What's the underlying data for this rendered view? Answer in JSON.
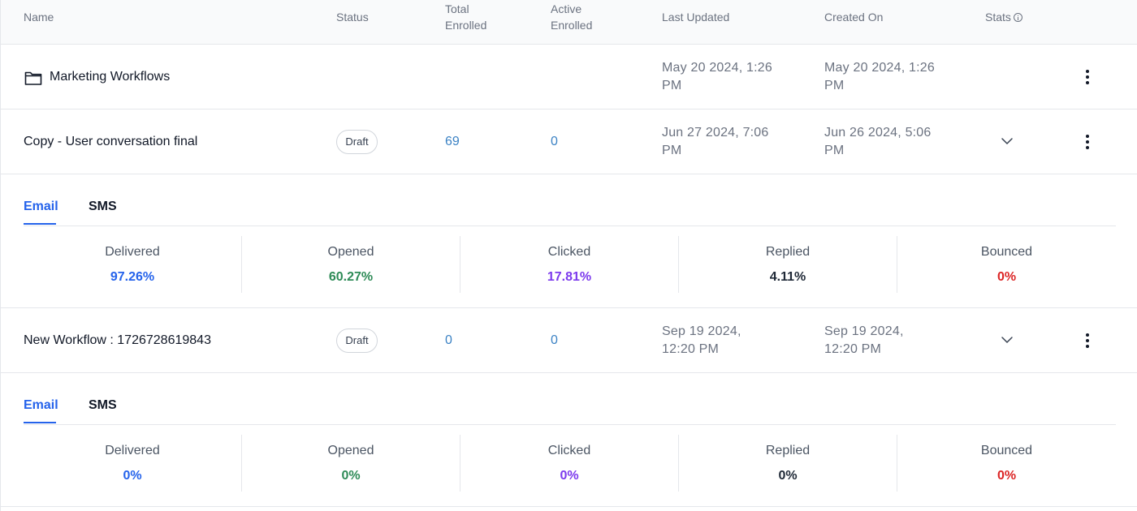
{
  "header": {
    "name": "Name",
    "status": "Status",
    "total_enrolled_1": "Total",
    "total_enrolled_2": "Enrolled",
    "active_enrolled_1": "Active",
    "active_enrolled_2": "Enrolled",
    "last_updated": "Last Updated",
    "created_on": "Created On",
    "stats": "Stats"
  },
  "rows": [
    {
      "icon": "folder-icon",
      "name": "Marketing Workflows",
      "last_updated_1": "May 20 2024, 1:26",
      "last_updated_2": "PM",
      "created_on_1": "May 20 2024, 1:26",
      "created_on_2": "PM"
    },
    {
      "name": "Copy - User conversation final",
      "status": "Draft",
      "total_enrolled": "69",
      "active_enrolled": "0",
      "last_updated_1": "Jun 27 2024, 7:06",
      "last_updated_2": "PM",
      "created_on_1": "Jun 26 2024, 5:06",
      "created_on_2": "PM",
      "stats_panel": {
        "tabs": [
          "Email",
          "SMS"
        ],
        "active_tab": "Email",
        "metrics": [
          {
            "label": "Delivered",
            "value": "97.26%",
            "color": "#2563eb"
          },
          {
            "label": "Opened",
            "value": "60.27%",
            "color": "#2e8b57"
          },
          {
            "label": "Clicked",
            "value": "17.81%",
            "color": "#7c3aed"
          },
          {
            "label": "Replied",
            "value": "4.11%",
            "color": "#1f2937"
          },
          {
            "label": "Bounced",
            "value": "0%",
            "color": "#dc2626"
          }
        ]
      }
    },
    {
      "name": "New Workflow : 1726728619843",
      "status": "Draft",
      "total_enrolled": "0",
      "active_enrolled": "0",
      "last_updated_1": "Sep 19 2024,",
      "last_updated_2": "12:20 PM",
      "created_on_1": "Sep 19 2024,",
      "created_on_2": "12:20 PM",
      "stats_panel": {
        "tabs": [
          "Email",
          "SMS"
        ],
        "active_tab": "Email",
        "metrics": [
          {
            "label": "Delivered",
            "value": "0%",
            "color": "#2563eb"
          },
          {
            "label": "Opened",
            "value": "0%",
            "color": "#2e8b57"
          },
          {
            "label": "Clicked",
            "value": "0%",
            "color": "#7c3aed"
          },
          {
            "label": "Replied",
            "value": "0%",
            "color": "#1f2937"
          },
          {
            "label": "Bounced",
            "value": "0%",
            "color": "#dc2626"
          }
        ]
      }
    }
  ]
}
